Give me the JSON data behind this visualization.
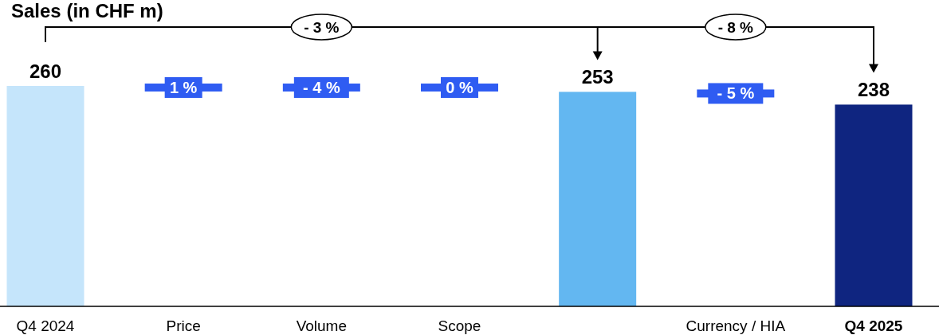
{
  "chart_data": {
    "type": "bar",
    "title": "Sales (in CHF m)",
    "categories": [
      "Q4 2024",
      "Price",
      "Volume",
      "Scope",
      null,
      "Currency / HIA",
      "Q4 2025"
    ],
    "values": [
      260,
      null,
      null,
      null,
      253,
      null,
      238
    ],
    "colors": [
      "#c5e5fb",
      "#2f5cf2",
      "#2f5cf2",
      "#2f5cf2",
      "#63b7f1",
      "#2f5cf2",
      "#0f2580"
    ],
    "data_labels": true,
    "annotations": [
      "- 3 %",
      "- 8 %",
      "1 %",
      "- 4 %",
      "0 %",
      "- 5 %"
    ]
  }
}
